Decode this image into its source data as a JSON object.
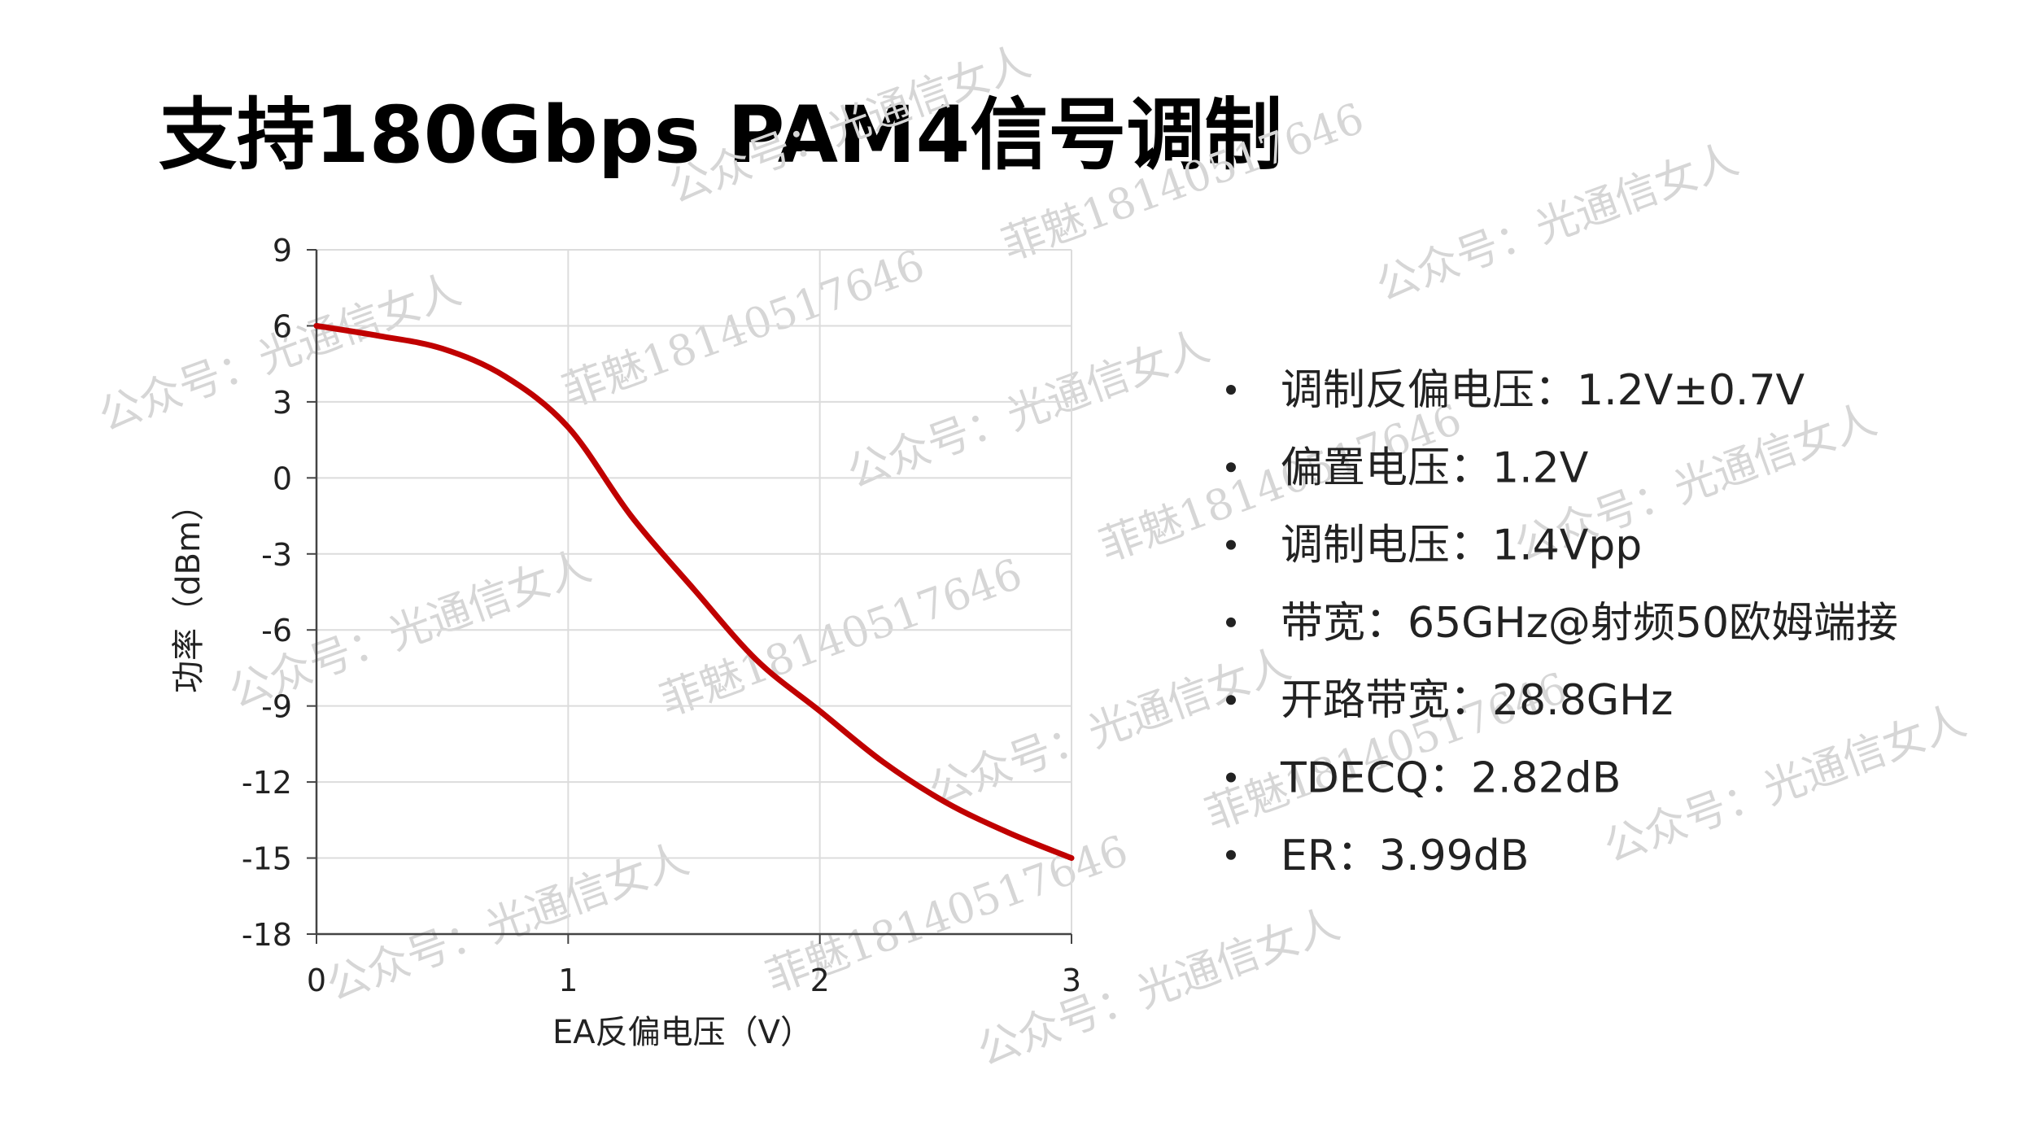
{
  "title": "支持180Gbps PAM4信号调制",
  "chart_data": {
    "type": "line",
    "x_label": "EA反偏电压（V）",
    "y_label": "功率（dBm）",
    "x": [
      0,
      0.25,
      0.5,
      0.75,
      1.0,
      1.25,
      1.5,
      1.75,
      2.0,
      2.25,
      2.5,
      2.75,
      3.0
    ],
    "series": [
      {
        "color": "#c00000",
        "values": [
          6,
          5.6,
          5.1,
          4.0,
          2.0,
          -1.5,
          -4.4,
          -7.2,
          -9.2,
          -11.2,
          -12.8,
          -14.0,
          -15.0
        ]
      }
    ],
    "xlim": [
      0,
      3
    ],
    "xticks": [
      0,
      1,
      2,
      3
    ],
    "ylim": [
      -18,
      9
    ],
    "yticks": [
      -18,
      -15,
      -12,
      -9,
      -6,
      -3,
      0,
      3,
      6,
      9
    ],
    "grid": true
  },
  "bullets": [
    "调制反偏电压：1.2V±0.7V",
    "偏置电压：1.2V",
    "调制电压：1.4Vpp",
    "带宽：65GHz@射频50欧姆端接",
    "开路带宽：28.8GHz",
    "TDECQ：2.82dB",
    "ER：3.99dB"
  ],
  "watermarks": [
    "公众号：光通信女人",
    "菲魅18140517646"
  ]
}
